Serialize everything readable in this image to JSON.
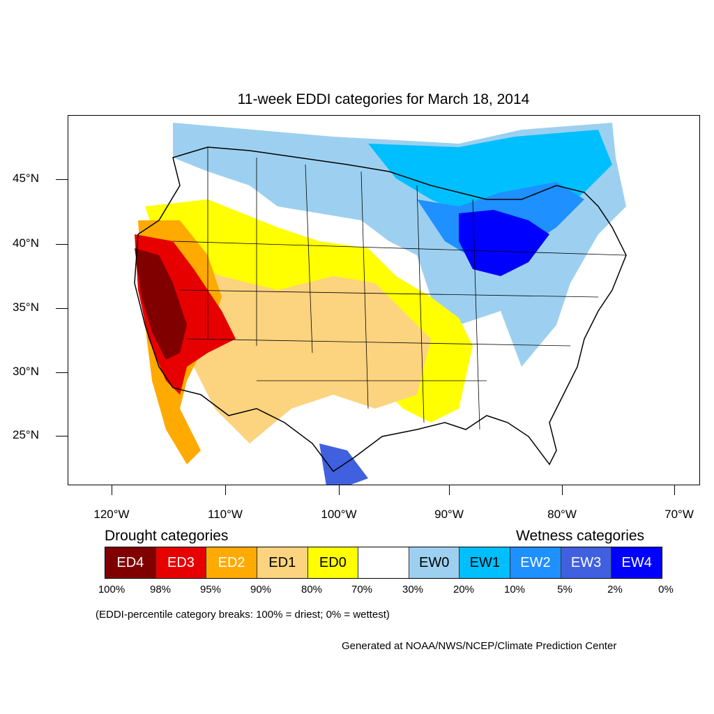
{
  "title": "11-week EDDI categories for March 18, 2014",
  "axes": {
    "lat_labels": [
      "45°N",
      "40°N",
      "35°N",
      "30°N",
      "25°N"
    ],
    "lon_labels": [
      "120°W",
      "110°W",
      "100°W",
      "90°W",
      "80°W",
      "70°W"
    ]
  },
  "legend": {
    "drought_heading": "Drought categories",
    "wetness_heading": "Wetness categories",
    "categories": [
      {
        "label": "ED4",
        "color": "#800000"
      },
      {
        "label": "ED3",
        "color": "#e60000"
      },
      {
        "label": "ED2",
        "color": "#ffaa00"
      },
      {
        "label": "ED1",
        "color": "#fcd37f"
      },
      {
        "label": "ED0",
        "color": "#ffff00"
      },
      {
        "label": "",
        "color": "#ffffff"
      },
      {
        "label": "EW0",
        "color": "#9dd0f0"
      },
      {
        "label": "EW1",
        "color": "#00bfff"
      },
      {
        "label": "EW2",
        "color": "#1e90ff"
      },
      {
        "label": "EW3",
        "color": "#4060e0"
      },
      {
        "label": "EW4",
        "color": "#0000ff"
      }
    ],
    "breaks": [
      "100%",
      "98%",
      "95%",
      "90%",
      "80%",
      "70%",
      "30%",
      "20%",
      "10%",
      "5%",
      "2%",
      "0%"
    ]
  },
  "note": "(EDDI-percentile category breaks: 100% = driest; 0% = wettest)",
  "credit": "Generated at NOAA/NWS/NCEP/Climate Prediction Center"
}
